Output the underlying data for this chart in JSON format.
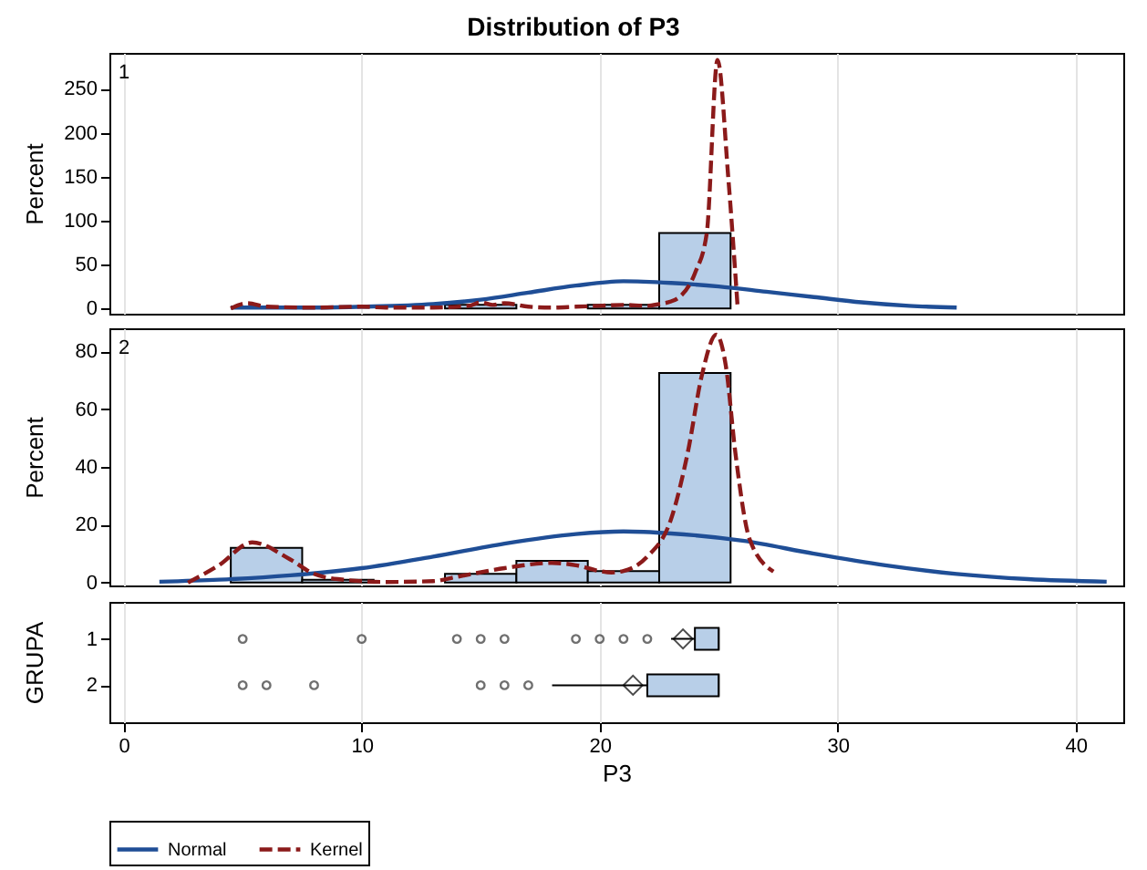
{
  "chart_data": [
    {
      "type": "histogram",
      "title": "Distribution of P3",
      "ylabel": "Percent",
      "annotations": [
        "1"
      ],
      "bins": [
        4.5,
        7.5,
        10.5,
        13.5,
        16.5,
        19.5,
        22.5,
        25.5
      ],
      "values": [
        null,
        null,
        0,
        4,
        null,
        4,
        86
      ],
      "color": "#b8cfe8",
      "xlim": [
        -0.6,
        42
      ],
      "xticks": [
        0,
        10,
        20,
        30,
        40
      ],
      "ylim": [
        -6,
        291
      ],
      "yticks": [
        0,
        50,
        100,
        150,
        200,
        250
      ],
      "grid": "x",
      "tick_labels": "y",
      "legend": "bottom",
      "series": [
        {
          "name": "Normal",
          "type": "line",
          "color": "#1f4e96",
          "line_style": "solid",
          "x": [
            4.5,
            8,
            10,
            13,
            15,
            17,
            19,
            21,
            23,
            25,
            27,
            29,
            31,
            33,
            35
          ],
          "values": [
            1,
            1,
            2,
            5,
            10,
            18,
            26,
            31,
            29,
            25,
            19,
            13,
            7,
            3,
            1
          ]
        },
        {
          "name": "Kernel",
          "type": "line",
          "color": "#8b1a1a",
          "line_style": "dashed",
          "x": [
            4.5,
            5.2,
            6,
            8,
            10,
            11,
            13,
            14.5,
            15,
            15.5,
            16,
            17,
            18,
            19,
            20,
            21,
            22,
            22.5,
            23,
            23.3,
            24,
            24.5,
            24.95,
            25.4,
            25.8
          ],
          "values": [
            0,
            6,
            2,
            1,
            2,
            1,
            1,
            3,
            7,
            4,
            6,
            2,
            1,
            2,
            3,
            4,
            3,
            5,
            8,
            12,
            40,
            86,
            283,
            150,
            0
          ]
        }
      ]
    },
    {
      "type": "histogram",
      "ylabel": "Percent",
      "annotations": [
        "2"
      ],
      "bins": [
        4.5,
        7.5,
        10.5,
        13.5,
        16.5,
        19.5,
        22.5,
        25.5
      ],
      "values": [
        12,
        1,
        0,
        3,
        7.5,
        4,
        72.5
      ],
      "color": "#b8cfe8",
      "xlim": [
        -0.6,
        42
      ],
      "xticks": [
        0,
        10,
        20,
        30,
        40
      ],
      "ylim": [
        -1,
        88
      ],
      "yticks": [
        0,
        20,
        40,
        60,
        80
      ],
      "grid": "x",
      "tick_labels": "y",
      "legend": "bottom",
      "series": [
        {
          "name": "Normal",
          "type": "line",
          "color": "#1f4e96",
          "line_style": "solid",
          "x": [
            1.5,
            4,
            7,
            10,
            13,
            16,
            19,
            21,
            23,
            26,
            29,
            32,
            35,
            38,
            41.3
          ],
          "values": [
            0.3,
            1,
            2.5,
            5,
            9,
            13.5,
            16.8,
            17.7,
            17,
            14.5,
            10,
            6,
            3,
            1.2,
            0.3
          ]
        },
        {
          "name": "Kernel",
          "type": "line",
          "color": "#8b1a1a",
          "line_style": "dashed",
          "x": [
            2.7,
            4,
            5.4,
            7,
            8,
            9,
            11,
            13,
            14,
            16,
            18,
            19,
            20,
            20.5,
            21,
            22,
            23,
            23.7,
            24.3,
            24.9,
            25.3,
            25.7,
            26.3,
            27.3
          ],
          "values": [
            0,
            6,
            13.9,
            8,
            3,
            1.2,
            0.2,
            0.5,
            2,
            5,
            6.8,
            6,
            4,
            3.5,
            4,
            9,
            22,
            45,
            72,
            85.8,
            75,
            45,
            15,
            3.8
          ]
        }
      ]
    },
    {
      "type": "box",
      "orientation": "horizontal",
      "xlabel": "P3",
      "ylabel": "GRUPA",
      "categories": [
        "1",
        "2"
      ],
      "color": "#b8cfe8",
      "xlim": [
        -0.6,
        42
      ],
      "xticks": [
        0,
        10,
        20,
        30,
        40
      ],
      "grid": "x",
      "boxes": [
        {
          "low": 23,
          "q1": 24,
          "median": 25,
          "q3": 25,
          "high": 25,
          "mean": 23.5,
          "outliers": [
            5,
            10,
            14,
            15,
            16,
            19,
            20,
            21,
            22
          ]
        },
        {
          "low": 18,
          "q1": 22,
          "median": 25,
          "q3": 25,
          "high": 25,
          "mean": 21.4,
          "outliers": [
            5,
            6,
            8,
            15,
            16,
            17
          ]
        }
      ]
    }
  ]
}
